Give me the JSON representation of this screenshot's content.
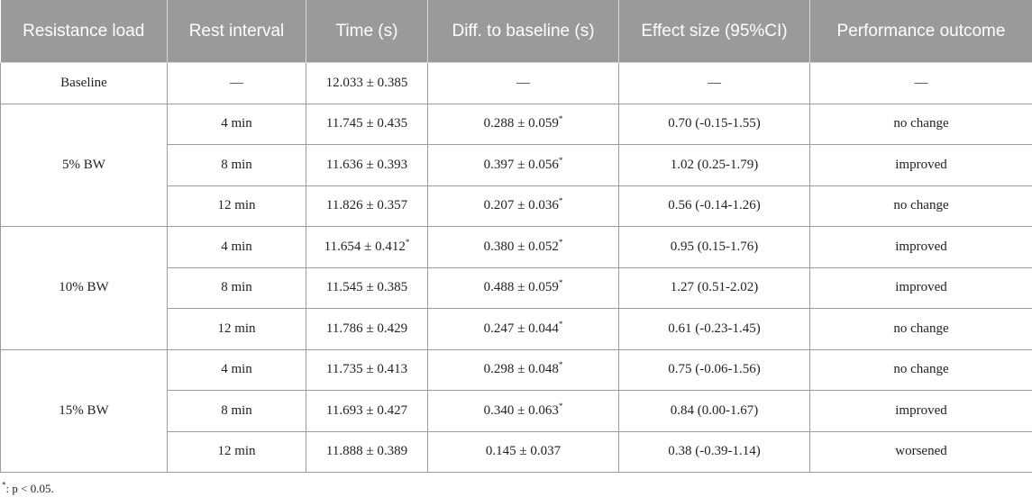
{
  "headers": [
    "Resistance load",
    "Rest interval",
    "Time (s)",
    "Diff. to baseline (s)",
    "Effect size (95%CI)",
    "Performance outcome"
  ],
  "baseline": {
    "label": "Baseline",
    "rest": "—",
    "time": "12.033 ± 0.385",
    "diff": "—",
    "effect": "—",
    "outcome": "—"
  },
  "groups": [
    {
      "load": "5% BW",
      "rows": [
        {
          "rest": "4 min",
          "time": "11.745 ± 0.435",
          "time_mark": "",
          "diff": "0.288 ± 0.059",
          "diff_mark": "*",
          "effect": "0.70 (-0.15-1.55)",
          "outcome": "no change"
        },
        {
          "rest": "8 min",
          "time": "11.636 ± 0.393",
          "time_mark": "",
          "diff": "0.397 ± 0.056",
          "diff_mark": "*",
          "effect": "1.02 (0.25-1.79)",
          "outcome": "improved"
        },
        {
          "rest": "12 min",
          "time": "11.826 ± 0.357",
          "time_mark": "",
          "diff": "0.207 ± 0.036",
          "diff_mark": "*",
          "effect": "0.56 (-0.14-1.26)",
          "outcome": "no change"
        }
      ]
    },
    {
      "load": "10% BW",
      "rows": [
        {
          "rest": "4 min",
          "time": "11.654 ± 0.412",
          "time_mark": "*",
          "diff": "0.380 ± 0.052",
          "diff_mark": "*",
          "effect": "0.95 (0.15-1.76)",
          "outcome": "improved"
        },
        {
          "rest": "8 min",
          "time": "11.545 ± 0.385",
          "time_mark": "",
          "diff": "0.488 ± 0.059",
          "diff_mark": "*",
          "effect": "1.27 (0.51-2.02)",
          "outcome": "improved"
        },
        {
          "rest": "12 min",
          "time": "11.786 ± 0.429",
          "time_mark": "",
          "diff": "0.247 ± 0.044",
          "diff_mark": "*",
          "effect": "0.61 (-0.23-1.45)",
          "outcome": "no change"
        }
      ]
    },
    {
      "load": "15% BW",
      "rows": [
        {
          "rest": "4 min",
          "time": "11.735 ± 0.413",
          "time_mark": "",
          "diff": "0.298 ± 0.048",
          "diff_mark": "*",
          "effect": "0.75 (-0.06-1.56)",
          "outcome": "no change"
        },
        {
          "rest": "8 min",
          "time": "11.693 ± 0.427",
          "time_mark": "",
          "diff": "0.340 ± 0.063",
          "diff_mark": "*",
          "effect": "0.84 (0.00-1.67)",
          "outcome": "improved"
        },
        {
          "rest": "12 min",
          "time": "11.888 ± 0.389",
          "time_mark": "",
          "diff": "0.145 ± 0.037",
          "diff_mark": "",
          "effect": "0.38 (-0.39-1.14)",
          "outcome": "worsened"
        }
      ]
    }
  ],
  "footnote": {
    "mark": "*",
    "text": ": p < 0.05."
  }
}
